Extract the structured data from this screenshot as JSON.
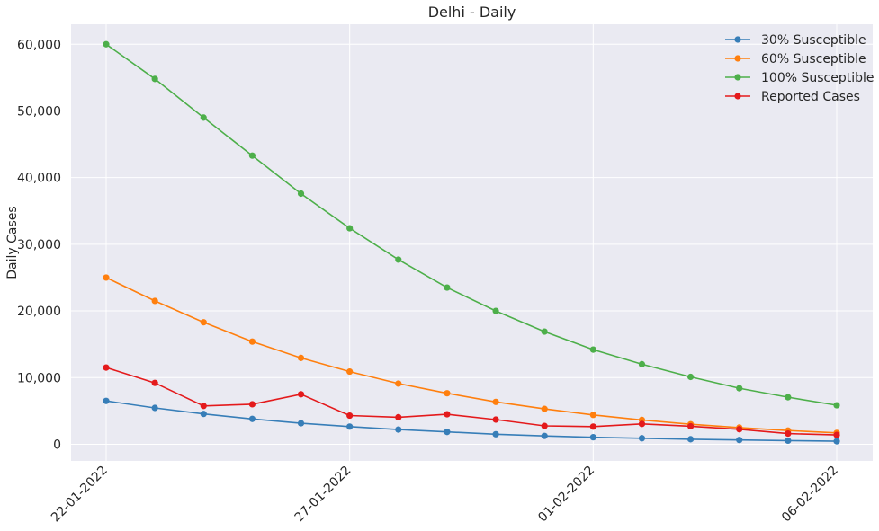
{
  "chart_data": {
    "type": "line",
    "title": "Delhi - Daily",
    "xlabel": "",
    "ylabel": "Daily Cases",
    "x": [
      "22-01-2022",
      "23-01-2022",
      "24-01-2022",
      "25-01-2022",
      "26-01-2022",
      "27-01-2022",
      "28-01-2022",
      "29-01-2022",
      "30-01-2022",
      "31-01-2022",
      "01-02-2022",
      "02-02-2022",
      "03-02-2022",
      "04-02-2022",
      "05-02-2022",
      "06-02-2022"
    ],
    "x_ticks": [
      "22-01-2022",
      "27-01-2022",
      "01-02-2022",
      "06-02-2022"
    ],
    "y_ticks": [
      "0",
      "10,000",
      "20,000",
      "30,000",
      "40,000",
      "50,000",
      "60,000"
    ],
    "y_tick_values": [
      0,
      10000,
      20000,
      30000,
      40000,
      50000,
      60000
    ],
    "ylim": [
      -2500,
      63000
    ],
    "grid": true,
    "legend_position": "top-right",
    "series": [
      {
        "name": "30% Susceptible",
        "color": "#377eb8",
        "values": [
          6500,
          5450,
          4550,
          3800,
          3150,
          2650,
          2200,
          1850,
          1500,
          1250,
          1050,
          900,
          750,
          640,
          540,
          450
        ]
      },
      {
        "name": "60% Susceptible",
        "color": "#ff7f0e",
        "values": [
          25000,
          21500,
          18300,
          15400,
          12950,
          10900,
          9100,
          7650,
          6350,
          5300,
          4400,
          3650,
          3000,
          2500,
          2050,
          1700
        ]
      },
      {
        "name": "100% Susceptible",
        "color": "#4daf4a",
        "values": [
          60000,
          54800,
          49000,
          43300,
          37600,
          32400,
          27700,
          23500,
          20000,
          16900,
          14200,
          12000,
          10100,
          8400,
          7050,
          5850
        ]
      },
      {
        "name": "Reported Cases",
        "color": "#e41a1c",
        "values": [
          11500,
          9200,
          5750,
          6000,
          7500,
          4300,
          4050,
          4500,
          3700,
          2750,
          2650,
          3050,
          2700,
          2250,
          1600,
          1400
        ]
      }
    ]
  }
}
